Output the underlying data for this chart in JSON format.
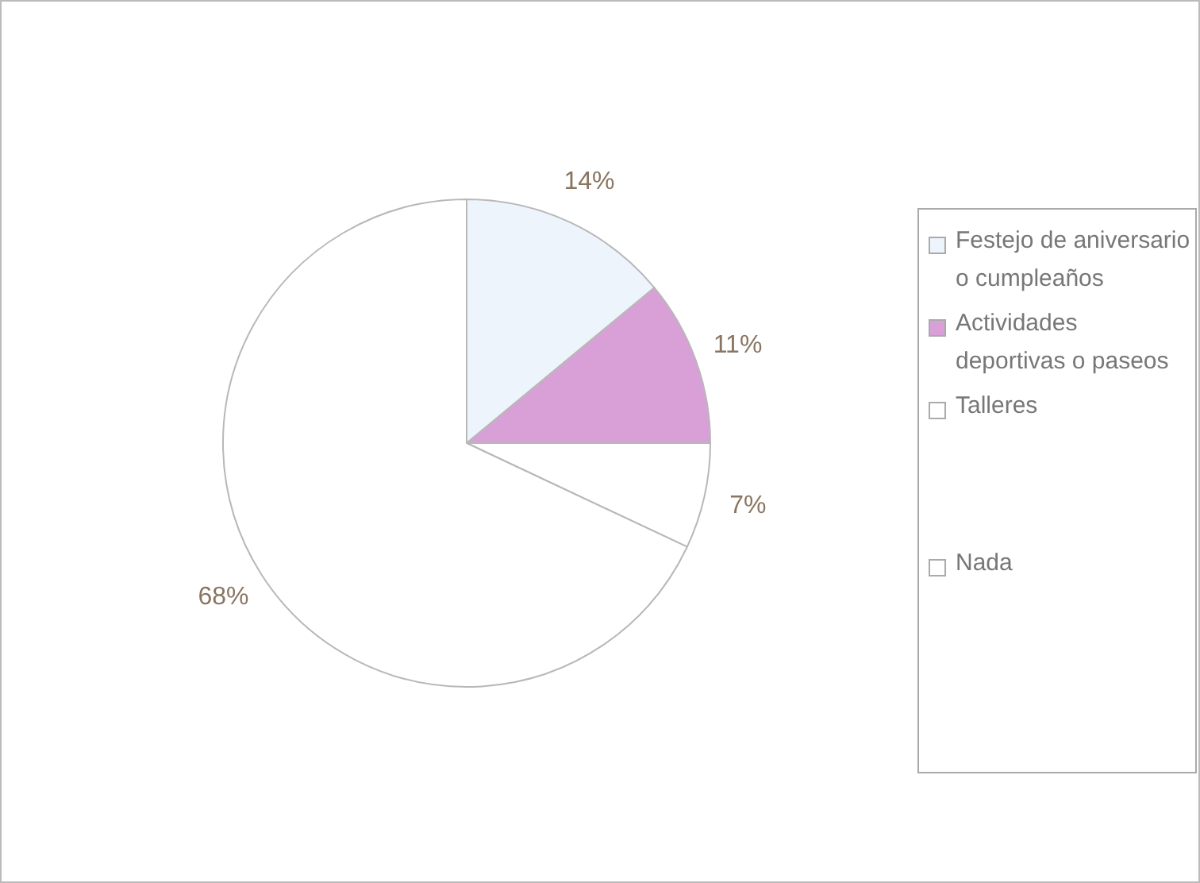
{
  "chart_data": {
    "type": "pie",
    "categories": [
      "Festejo de aniversario o cumpleaños",
      "Actividades deportivas o paseos",
      "Talleres",
      "Nada"
    ],
    "values": [
      14,
      11,
      7,
      68
    ],
    "colors": [
      "#eef4fc",
      "#d9a0d8",
      "#ffffff",
      "#ffffff"
    ],
    "value_labels": [
      "14%",
      "11%",
      "7%",
      "68%"
    ],
    "legend": "right"
  }
}
